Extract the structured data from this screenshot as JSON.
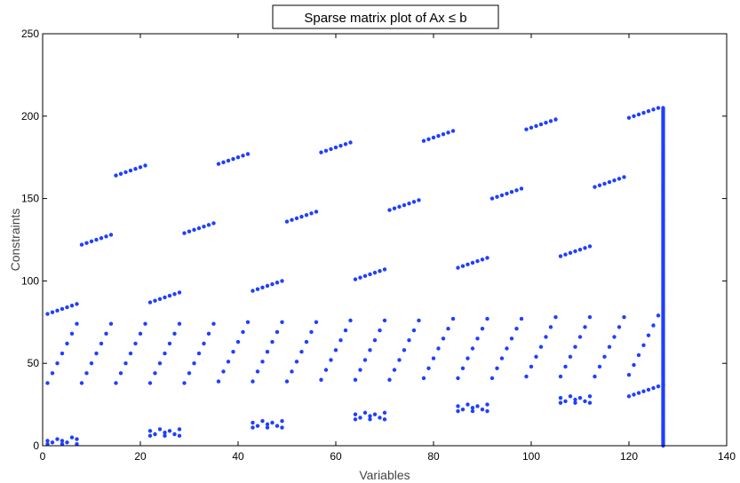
{
  "chart_data": {
    "type": "scatter",
    "title": "Sparse matrix plot of Ax ≤ b",
    "xlabel": "Variables",
    "ylabel": "Constraints",
    "xlim": [
      0,
      140
    ],
    "ylim": [
      0,
      250
    ],
    "xticks": [
      0,
      20,
      40,
      60,
      80,
      100,
      120,
      140
    ],
    "yticks": [
      0,
      50,
      100,
      150,
      200,
      250
    ],
    "grid": false,
    "marker_color": "#1f3fff",
    "marker_shape": "dot",
    "series": [
      {
        "points": [
          [
            1,
            1
          ],
          [
            1,
            3
          ],
          [
            2,
            2
          ],
          [
            3,
            4
          ],
          [
            4,
            1
          ],
          [
            4,
            3
          ],
          [
            5,
            2
          ],
          [
            6,
            5
          ],
          [
            7,
            1
          ],
          [
            7,
            4
          ],
          [
            22,
            6
          ],
          [
            22,
            9
          ],
          [
            23,
            7
          ],
          [
            24,
            10
          ],
          [
            25,
            6
          ],
          [
            25,
            8
          ],
          [
            26,
            9
          ],
          [
            27,
            7
          ],
          [
            28,
            6
          ],
          [
            28,
            10
          ],
          [
            43,
            11
          ],
          [
            43,
            14
          ],
          [
            44,
            12
          ],
          [
            45,
            15
          ],
          [
            46,
            11
          ],
          [
            46,
            13
          ],
          [
            47,
            14
          ],
          [
            48,
            12
          ],
          [
            49,
            11
          ],
          [
            49,
            15
          ],
          [
            64,
            16
          ],
          [
            64,
            19
          ],
          [
            65,
            17
          ],
          [
            66,
            20
          ],
          [
            67,
            16
          ],
          [
            67,
            18
          ],
          [
            68,
            19
          ],
          [
            69,
            17
          ],
          [
            70,
            16
          ],
          [
            70,
            20
          ],
          [
            85,
            21
          ],
          [
            85,
            24
          ],
          [
            86,
            22
          ],
          [
            87,
            25
          ],
          [
            88,
            21
          ],
          [
            88,
            23
          ],
          [
            89,
            24
          ],
          [
            90,
            22
          ],
          [
            91,
            21
          ],
          [
            91,
            25
          ],
          [
            106,
            26
          ],
          [
            106,
            29
          ],
          [
            107,
            27
          ],
          [
            108,
            30
          ],
          [
            109,
            26
          ],
          [
            109,
            28
          ],
          [
            110,
            29
          ],
          [
            111,
            27
          ],
          [
            112,
            26
          ],
          [
            112,
            30
          ],
          [
            120,
            30
          ],
          [
            121,
            31
          ],
          [
            122,
            32
          ],
          [
            123,
            33
          ],
          [
            124,
            34
          ],
          [
            125,
            35
          ],
          [
            126,
            36
          ],
          [
            127,
            37
          ],
          [
            1,
            38
          ],
          [
            2,
            44
          ],
          [
            3,
            50
          ],
          [
            4,
            56
          ],
          [
            5,
            62
          ],
          [
            6,
            68
          ],
          [
            7,
            74
          ],
          [
            8,
            38
          ],
          [
            9,
            44
          ],
          [
            10,
            50
          ],
          [
            11,
            56
          ],
          [
            12,
            62
          ],
          [
            13,
            68
          ],
          [
            14,
            74
          ],
          [
            15,
            38
          ],
          [
            16,
            44
          ],
          [
            17,
            50
          ],
          [
            18,
            56
          ],
          [
            19,
            62
          ],
          [
            20,
            68
          ],
          [
            21,
            74
          ],
          [
            22,
            38
          ],
          [
            23,
            44
          ],
          [
            24,
            50
          ],
          [
            25,
            56
          ],
          [
            26,
            62
          ],
          [
            27,
            68
          ],
          [
            28,
            74
          ],
          [
            29,
            38
          ],
          [
            30,
            44
          ],
          [
            31,
            50
          ],
          [
            32,
            56
          ],
          [
            33,
            62
          ],
          [
            34,
            68
          ],
          [
            35,
            74
          ],
          [
            36,
            39
          ],
          [
            37,
            45
          ],
          [
            38,
            51
          ],
          [
            39,
            57
          ],
          [
            40,
            63
          ],
          [
            41,
            69
          ],
          [
            42,
            75
          ],
          [
            43,
            39
          ],
          [
            44,
            45
          ],
          [
            45,
            51
          ],
          [
            46,
            57
          ],
          [
            47,
            63
          ],
          [
            48,
            69
          ],
          [
            49,
            75
          ],
          [
            50,
            39
          ],
          [
            51,
            45
          ],
          [
            52,
            51
          ],
          [
            53,
            57
          ],
          [
            54,
            63
          ],
          [
            55,
            69
          ],
          [
            56,
            75
          ],
          [
            57,
            40
          ],
          [
            58,
            46
          ],
          [
            59,
            52
          ],
          [
            60,
            58
          ],
          [
            61,
            64
          ],
          [
            62,
            70
          ],
          [
            63,
            76
          ],
          [
            64,
            40
          ],
          [
            65,
            46
          ],
          [
            66,
            52
          ],
          [
            67,
            58
          ],
          [
            68,
            64
          ],
          [
            69,
            70
          ],
          [
            70,
            76
          ],
          [
            71,
            40
          ],
          [
            72,
            46
          ],
          [
            73,
            52
          ],
          [
            74,
            58
          ],
          [
            75,
            64
          ],
          [
            76,
            70
          ],
          [
            77,
            76
          ],
          [
            78,
            41
          ],
          [
            79,
            47
          ],
          [
            80,
            53
          ],
          [
            81,
            59
          ],
          [
            82,
            65
          ],
          [
            83,
            71
          ],
          [
            84,
            77
          ],
          [
            85,
            41
          ],
          [
            86,
            47
          ],
          [
            87,
            53
          ],
          [
            88,
            59
          ],
          [
            89,
            65
          ],
          [
            90,
            71
          ],
          [
            91,
            77
          ],
          [
            92,
            41
          ],
          [
            93,
            47
          ],
          [
            94,
            53
          ],
          [
            95,
            59
          ],
          [
            96,
            65
          ],
          [
            97,
            71
          ],
          [
            98,
            77
          ],
          [
            99,
            42
          ],
          [
            100,
            48
          ],
          [
            101,
            54
          ],
          [
            102,
            60
          ],
          [
            103,
            66
          ],
          [
            104,
            72
          ],
          [
            105,
            78
          ],
          [
            106,
            42
          ],
          [
            107,
            48
          ],
          [
            108,
            54
          ],
          [
            109,
            60
          ],
          [
            110,
            66
          ],
          [
            111,
            72
          ],
          [
            112,
            78
          ],
          [
            113,
            42
          ],
          [
            114,
            48
          ],
          [
            115,
            54
          ],
          [
            116,
            60
          ],
          [
            117,
            66
          ],
          [
            118,
            72
          ],
          [
            119,
            78
          ],
          [
            120,
            43
          ],
          [
            121,
            49
          ],
          [
            122,
            55
          ],
          [
            123,
            61
          ],
          [
            124,
            67
          ],
          [
            125,
            73
          ],
          [
            126,
            79
          ],
          [
            1,
            80
          ],
          [
            2,
            81
          ],
          [
            3,
            82
          ],
          [
            4,
            83
          ],
          [
            5,
            84
          ],
          [
            6,
            85
          ],
          [
            7,
            86
          ],
          [
            22,
            87
          ],
          [
            23,
            88
          ],
          [
            24,
            89
          ],
          [
            25,
            90
          ],
          [
            26,
            91
          ],
          [
            27,
            92
          ],
          [
            28,
            93
          ],
          [
            43,
            94
          ],
          [
            44,
            95
          ],
          [
            45,
            96
          ],
          [
            46,
            97
          ],
          [
            47,
            98
          ],
          [
            48,
            99
          ],
          [
            49,
            100
          ],
          [
            64,
            101
          ],
          [
            65,
            102
          ],
          [
            66,
            103
          ],
          [
            67,
            104
          ],
          [
            68,
            105
          ],
          [
            69,
            106
          ],
          [
            70,
            107
          ],
          [
            85,
            108
          ],
          [
            86,
            109
          ],
          [
            87,
            110
          ],
          [
            88,
            111
          ],
          [
            89,
            112
          ],
          [
            90,
            113
          ],
          [
            91,
            114
          ],
          [
            106,
            115
          ],
          [
            107,
            116
          ],
          [
            108,
            117
          ],
          [
            109,
            118
          ],
          [
            110,
            119
          ],
          [
            111,
            120
          ],
          [
            112,
            121
          ],
          [
            8,
            122
          ],
          [
            9,
            123
          ],
          [
            10,
            124
          ],
          [
            11,
            125
          ],
          [
            12,
            126
          ],
          [
            13,
            127
          ],
          [
            14,
            128
          ],
          [
            29,
            129
          ],
          [
            30,
            130
          ],
          [
            31,
            131
          ],
          [
            32,
            132
          ],
          [
            33,
            133
          ],
          [
            34,
            134
          ],
          [
            35,
            135
          ],
          [
            50,
            136
          ],
          [
            51,
            137
          ],
          [
            52,
            138
          ],
          [
            53,
            139
          ],
          [
            54,
            140
          ],
          [
            55,
            141
          ],
          [
            56,
            142
          ],
          [
            71,
            143
          ],
          [
            72,
            144
          ],
          [
            73,
            145
          ],
          [
            74,
            146
          ],
          [
            75,
            147
          ],
          [
            76,
            148
          ],
          [
            77,
            149
          ],
          [
            92,
            150
          ],
          [
            93,
            151
          ],
          [
            94,
            152
          ],
          [
            95,
            153
          ],
          [
            96,
            154
          ],
          [
            97,
            155
          ],
          [
            98,
            156
          ],
          [
            113,
            157
          ],
          [
            114,
            158
          ],
          [
            115,
            159
          ],
          [
            116,
            160
          ],
          [
            117,
            161
          ],
          [
            118,
            162
          ],
          [
            119,
            163
          ],
          [
            15,
            164
          ],
          [
            16,
            165
          ],
          [
            17,
            166
          ],
          [
            18,
            167
          ],
          [
            19,
            168
          ],
          [
            20,
            169
          ],
          [
            21,
            170
          ],
          [
            36,
            171
          ],
          [
            37,
            172
          ],
          [
            38,
            173
          ],
          [
            39,
            174
          ],
          [
            40,
            175
          ],
          [
            41,
            176
          ],
          [
            42,
            177
          ],
          [
            57,
            178
          ],
          [
            58,
            179
          ],
          [
            59,
            180
          ],
          [
            60,
            181
          ],
          [
            61,
            182
          ],
          [
            62,
            183
          ],
          [
            63,
            184
          ],
          [
            78,
            185
          ],
          [
            79,
            186
          ],
          [
            80,
            187
          ],
          [
            81,
            188
          ],
          [
            82,
            189
          ],
          [
            83,
            190
          ],
          [
            84,
            191
          ],
          [
            99,
            192
          ],
          [
            100,
            193
          ],
          [
            101,
            194
          ],
          [
            102,
            195
          ],
          [
            103,
            196
          ],
          [
            104,
            197
          ],
          [
            105,
            198
          ],
          [
            120,
            199
          ],
          [
            121,
            200
          ],
          [
            122,
            201
          ],
          [
            123,
            202
          ],
          [
            124,
            203
          ],
          [
            125,
            204
          ],
          [
            126,
            205
          ]
        ]
      },
      {
        "column_x": 127,
        "y_range": [
          0,
          205
        ],
        "note_rows": "every row"
      }
    ]
  }
}
